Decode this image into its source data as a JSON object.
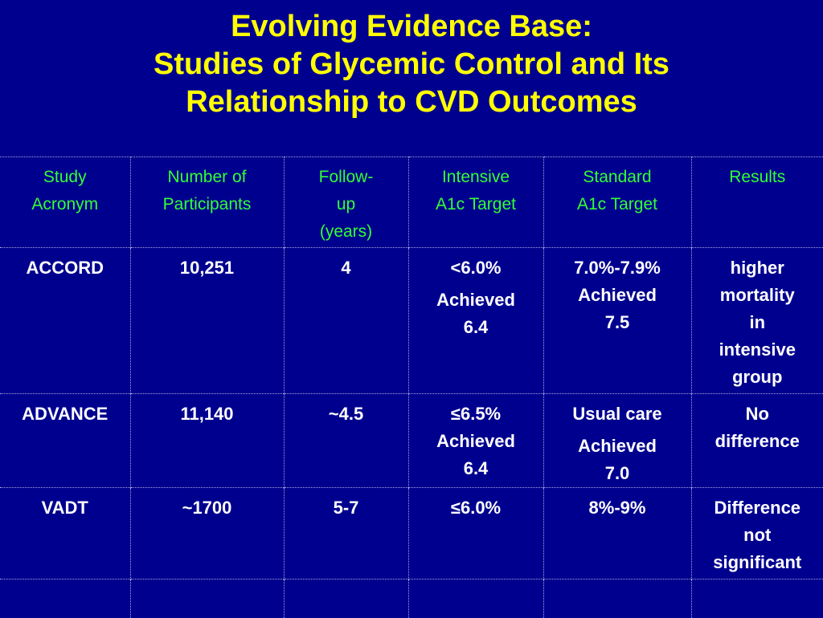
{
  "title": {
    "line1": "Evolving Evidence Base:",
    "line2": "Studies of Glycemic Control and Its",
    "line3": "Relationship to CVD Outcomes"
  },
  "table": {
    "headers": [
      [
        "Study",
        "Acronym"
      ],
      [
        "Number of",
        "Participants"
      ],
      [
        "Follow-",
        "up",
        "(years)"
      ],
      [
        "Intensive",
        "A1c Target"
      ],
      [
        "Standard",
        "A1c Target"
      ],
      [
        "Results"
      ]
    ],
    "rows": [
      {
        "study": "ACCORD",
        "participants": "10,251",
        "followup": "4",
        "intensive": [
          "<6.0%",
          "Achieved",
          "6.4"
        ],
        "standard": [
          "7.0%-7.9%",
          "Achieved",
          "7.5"
        ],
        "results": [
          "higher",
          "mortality",
          "in",
          "intensive",
          "group"
        ]
      },
      {
        "study": "ADVANCE",
        "participants": "11,140",
        "followup": "~4.5",
        "intensive": [
          "≤6.5%",
          "Achieved",
          "6.4"
        ],
        "standard": [
          "Usual care",
          "Achieved",
          "7.0"
        ],
        "results": [
          "No",
          "difference"
        ]
      },
      {
        "study": "VADT",
        "participants": "~1700",
        "followup": "5-7",
        "intensive": [
          "≤6.0%"
        ],
        "standard": [
          "8%-9%"
        ],
        "results": [
          "Difference",
          "not",
          "significant"
        ]
      }
    ]
  },
  "colors": {
    "background": "#00008f",
    "title": "#ffff00",
    "header_text": "#33ff33",
    "body_text": "#ffffff",
    "grid_lines": "#a8a8d8"
  }
}
